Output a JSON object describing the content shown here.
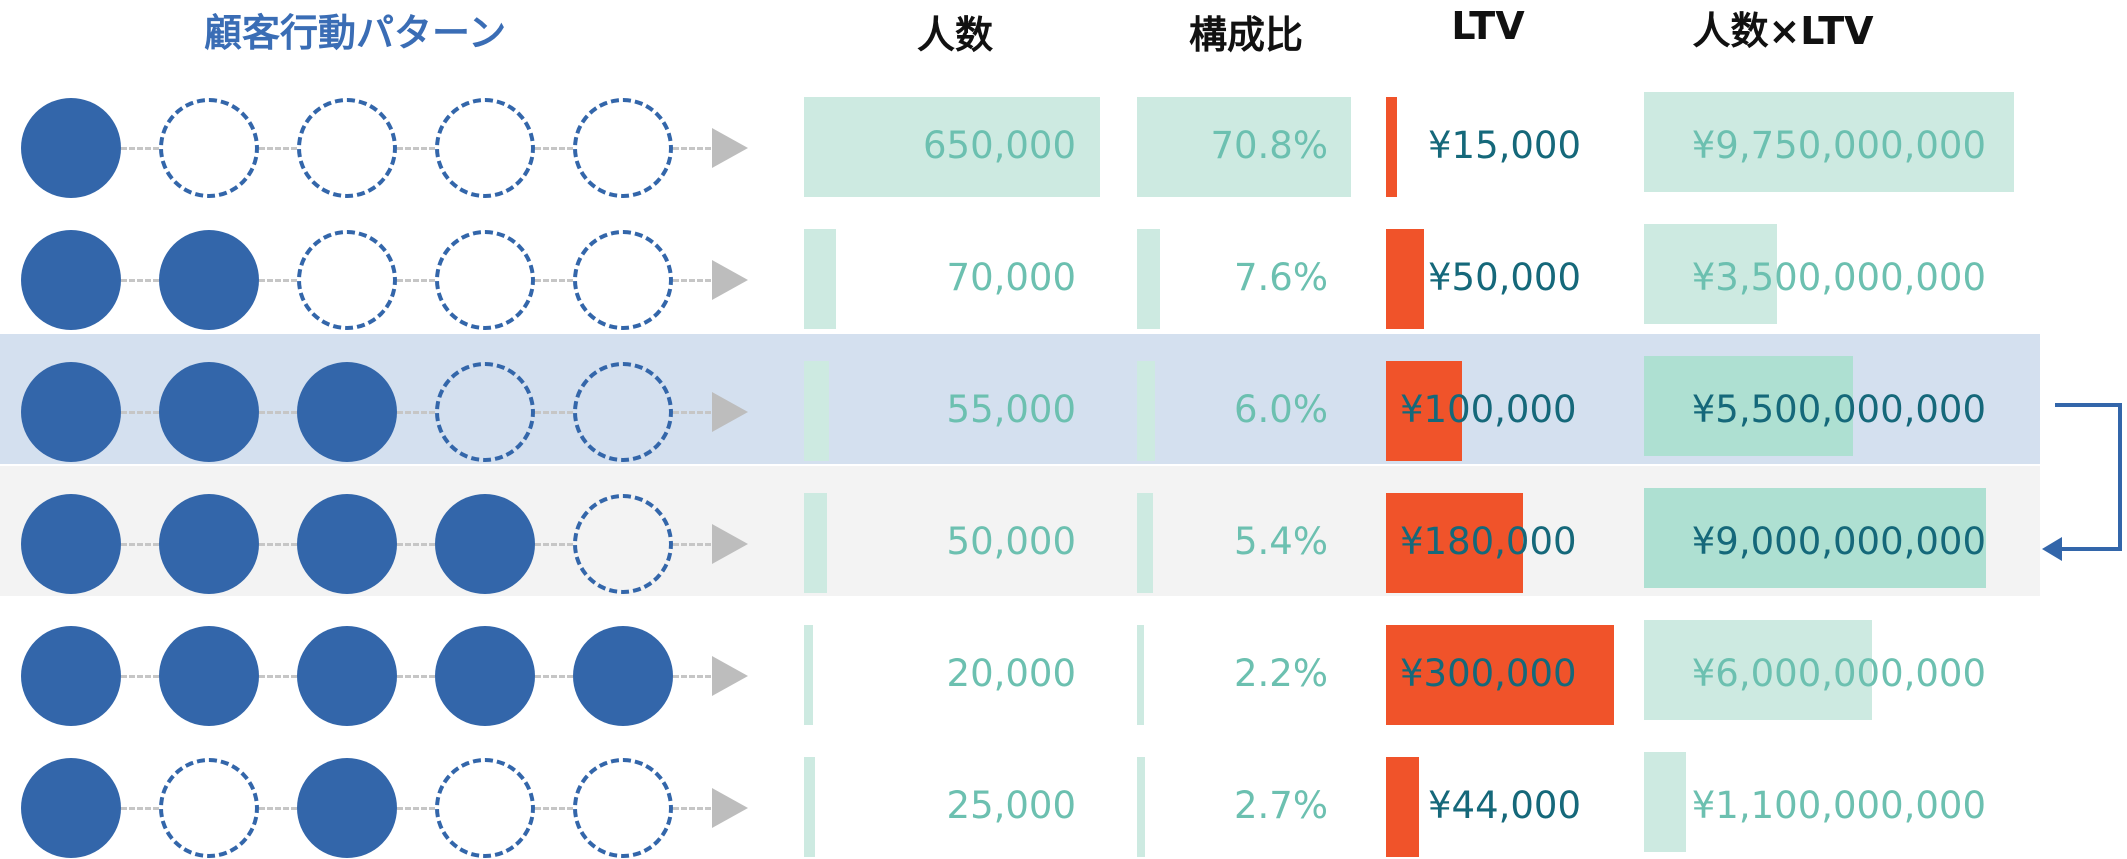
{
  "headers": {
    "pattern": "顧客行動パターン",
    "count": "人数",
    "ratio": "構成比",
    "ltv": "LTV",
    "count_x_ltv": "人数×LTV"
  },
  "colors": {
    "circle": "#3366aa",
    "title": "#3a6db5",
    "mint_bar": "#cdeae1",
    "ltv_bar": "#f0532a",
    "teal_text": "#6cc0b0",
    "dark_text": "#15687a",
    "highlight_blue": "#d4e0ef",
    "highlight_gray": "#f3f3f3",
    "arrow": "#3366aa"
  },
  "rows": [
    {
      "pattern": [
        1,
        0,
        0,
        0,
        0
      ],
      "count": "650,000",
      "ratio": "70.8%",
      "ltv": "¥15,000",
      "total": "¥9,750,000,000",
      "highlight": ""
    },
    {
      "pattern": [
        1,
        1,
        0,
        0,
        0
      ],
      "count": "70,000",
      "ratio": "7.6%",
      "ltv": "¥50,000",
      "total": "¥3,500,000,000",
      "highlight": ""
    },
    {
      "pattern": [
        1,
        1,
        1,
        0,
        0
      ],
      "count": "55,000",
      "ratio": "6.0%",
      "ltv": "¥100,000",
      "total": "¥5,500,000,000",
      "highlight": "blue"
    },
    {
      "pattern": [
        1,
        1,
        1,
        1,
        0
      ],
      "count": "50,000",
      "ratio": "5.4%",
      "ltv": "¥180,000",
      "total": "¥9,000,000,000",
      "highlight": "gray"
    },
    {
      "pattern": [
        1,
        1,
        1,
        1,
        1
      ],
      "count": "20,000",
      "ratio": "2.2%",
      "ltv": "¥300,000",
      "total": "¥6,000,000,000",
      "highlight": ""
    },
    {
      "pattern": [
        1,
        0,
        1,
        0,
        0
      ],
      "count": "25,000",
      "ratio": "2.7%",
      "ltv": "¥44,000",
      "total": "¥1,100,000,000",
      "highlight": ""
    }
  ],
  "chart_data": {
    "type": "table",
    "columns": [
      "顧客行動パターン",
      "人数",
      "構成比",
      "LTV",
      "人数×LTV"
    ],
    "count": [
      650000,
      70000,
      55000,
      50000,
      20000,
      25000
    ],
    "ratio_percent": [
      70.8,
      7.6,
      6.0,
      5.4,
      2.2,
      2.7
    ],
    "ltv_yen": [
      15000,
      50000,
      100000,
      180000,
      300000,
      44000
    ],
    "total_yen": [
      9750000000,
      3500000000,
      5500000000,
      9000000000,
      6000000000,
      1100000000
    ],
    "annotation": "arrow from row 3 to row 4"
  }
}
